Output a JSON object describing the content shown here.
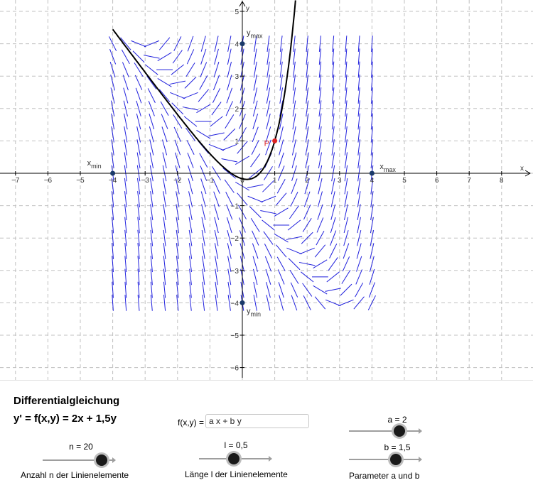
{
  "graph": {
    "x_axis_label": "x",
    "y_axis_label": "y",
    "x_ticks": [
      "−7",
      "−6",
      "−5",
      "−4",
      "−3",
      "−2",
      "−1",
      "0",
      "1",
      "2",
      "3",
      "4",
      "5",
      "6",
      "7",
      "8"
    ],
    "y_ticks": [
      "5",
      "4",
      "3",
      "2",
      "1",
      "−1",
      "−2",
      "−3",
      "−4",
      "−5",
      "−6"
    ],
    "points": {
      "xmin": {
        "main": "x",
        "sub": "min",
        "x": -4,
        "y": 0
      },
      "xmax": {
        "main": "x",
        "sub": "max",
        "x": 4,
        "y": 0
      },
      "ymax": {
        "main": "y",
        "sub": "max",
        "x": 0,
        "y": 4
      },
      "ymin": {
        "main": "y",
        "sub": "min",
        "x": 0,
        "y": -4
      },
      "P": {
        "label": "P",
        "x": 1,
        "y": 1
      }
    },
    "colors": {
      "field": "#2020dd",
      "curve": "#000000",
      "point_P": "#dd2222",
      "control_point": "#1a3a6a",
      "grid": "#c0c0c0"
    },
    "field": {
      "a": 2,
      "b": 1.5,
      "n": 20,
      "length": 0.5,
      "x_range": [
        -4,
        4
      ],
      "y_range": [
        -4,
        4
      ]
    }
  },
  "panel": {
    "title": "Differentialgleichung",
    "equation": "y' = f(x,y) = 2x + 1,5y",
    "fx_label": "f(x,y) =",
    "fx_value": "a x + b y",
    "slider_n": {
      "value_text": "n = 20",
      "caption": "Anzahl n der Linienelemente",
      "value": 20,
      "min": 1,
      "max": 25
    },
    "slider_l": {
      "value_text": "l = 0,5",
      "caption": "Länge l der Linienelemente",
      "value": 0.5,
      "min": 0,
      "max": 1
    },
    "slider_a": {
      "value_text": "a = 2",
      "value": 2,
      "min": -5,
      "max": 5
    },
    "slider_b": {
      "value_text": "b = 1,5",
      "value": 1.5,
      "min": -5,
      "max": 5
    },
    "params_caption": "Parameter a und b"
  }
}
